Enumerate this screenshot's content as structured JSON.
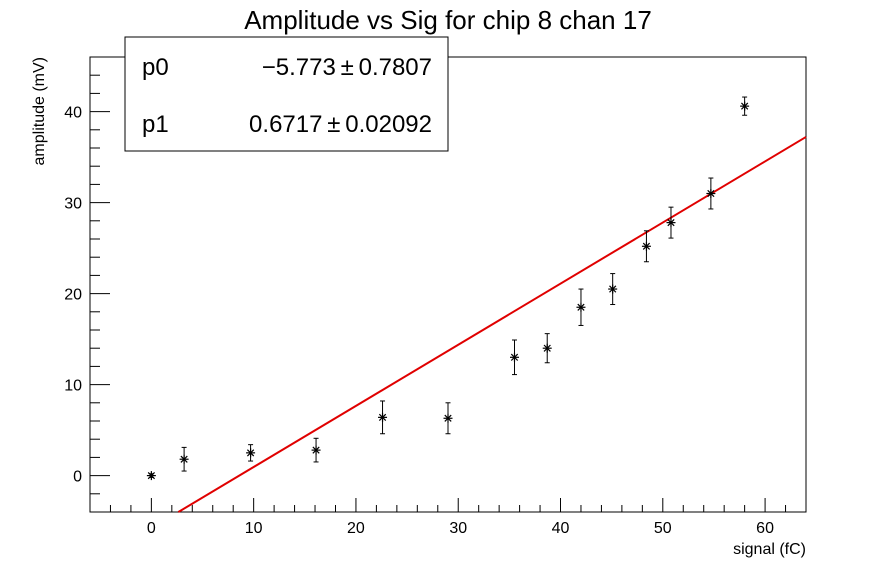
{
  "chart_data": {
    "type": "scatter",
    "title": "Amplitude vs Sig for chip 8 chan 17",
    "xlabel": "signal (fC)",
    "ylabel": "amplitude (mV)",
    "xlim": [
      -6,
      64
    ],
    "ylim": [
      -4,
      46
    ],
    "x_ticks": [
      0,
      10,
      20,
      30,
      40,
      50,
      60
    ],
    "y_ticks": [
      0,
      10,
      20,
      30,
      40
    ],
    "grid": false,
    "points": [
      {
        "x": 0.0,
        "y": 0.0,
        "err": 0.2
      },
      {
        "x": 3.2,
        "y": 1.8,
        "err": 1.3
      },
      {
        "x": 9.7,
        "y": 2.5,
        "err": 0.9
      },
      {
        "x": 16.1,
        "y": 2.8,
        "err": 1.3
      },
      {
        "x": 22.6,
        "y": 6.4,
        "err": 1.8
      },
      {
        "x": 29.0,
        "y": 6.3,
        "err": 1.7
      },
      {
        "x": 35.5,
        "y": 13.0,
        "err": 1.9
      },
      {
        "x": 38.7,
        "y": 14.0,
        "err": 1.6
      },
      {
        "x": 42.0,
        "y": 18.5,
        "err": 2.0
      },
      {
        "x": 45.1,
        "y": 20.5,
        "err": 1.7
      },
      {
        "x": 48.4,
        "y": 25.2,
        "err": 1.7
      },
      {
        "x": 50.8,
        "y": 27.8,
        "err": 1.7
      },
      {
        "x": 54.7,
        "y": 31.0,
        "err": 1.7
      },
      {
        "x": 58.0,
        "y": 40.6,
        "err": 1.0
      }
    ],
    "fit": {
      "p0": -5.773,
      "p1": 0.6717,
      "color": "#e00000"
    },
    "stats": [
      {
        "name": "p0",
        "value": "−5.773 ± 0.7807"
      },
      {
        "name": "p1",
        "value": "0.6717 ± 0.02092"
      }
    ]
  }
}
